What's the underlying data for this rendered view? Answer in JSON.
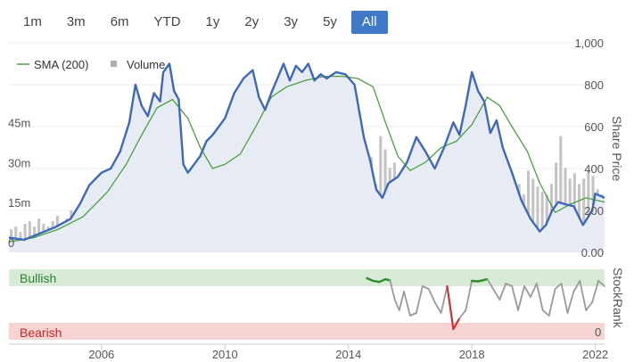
{
  "range_buttons": [
    {
      "label": "1m",
      "active": false
    },
    {
      "label": "3m",
      "active": false
    },
    {
      "label": "6m",
      "active": false
    },
    {
      "label": "YTD",
      "active": false
    },
    {
      "label": "1y",
      "active": false
    },
    {
      "label": "2y",
      "active": false
    },
    {
      "label": "3y",
      "active": false
    },
    {
      "label": "5y",
      "active": false
    },
    {
      "label": "All",
      "active": true
    }
  ],
  "colors": {
    "price": "#3f68b5",
    "sma": "#4aa03f",
    "volume": "#c4c4c4",
    "area": "#e7ebf4",
    "bullish_band": "#d7ebd7",
    "bearish_band": "#f6d4d4",
    "stockrank": "#9a9a9a",
    "stockrank_bull": "#2e8b2e",
    "stockrank_bear": "#d03030",
    "active_button": "#3f79c8"
  },
  "chart_data": {
    "type": "line",
    "legend": [
      {
        "label": "SMA (200)",
        "kind": "line"
      },
      {
        "label": "Volume",
        "kind": "bar"
      }
    ],
    "price_axis": {
      "title": "Share Price",
      "min": 0,
      "max": 1000,
      "ticks": [
        "1,000",
        "800",
        "600",
        "400",
        "200",
        "0.00"
      ]
    },
    "volume_axis": {
      "min": 0,
      "max": 75,
      "ticks": [
        "45m",
        "30m",
        "15m",
        "0"
      ]
    },
    "x_axis": {
      "min": 2003.0,
      "max": 2022.3,
      "ticks": [
        "2006",
        "2010",
        "2014",
        "2018",
        "2022"
      ],
      "tick_values": [
        2006,
        2010,
        2014,
        2018,
        2022
      ]
    },
    "price": {
      "x": [
        2003.0,
        2003.5,
        2004.0,
        2004.5,
        2005.0,
        2005.3,
        2005.6,
        2006.0,
        2006.3,
        2006.6,
        2006.9,
        2007.1,
        2007.3,
        2007.5,
        2007.7,
        2007.9,
        2008.0,
        2008.2,
        2008.35,
        2008.5,
        2008.65,
        2008.8,
        2009.0,
        2009.2,
        2009.4,
        2009.6,
        2009.8,
        2010.0,
        2010.3,
        2010.6,
        2010.9,
        2011.1,
        2011.3,
        2011.5,
        2011.7,
        2011.9,
        2012.1,
        2012.3,
        2012.5,
        2012.7,
        2012.9,
        2013.1,
        2013.3,
        2013.6,
        2013.9,
        2014.2,
        2014.5,
        2014.7,
        2014.9,
        2015.1,
        2015.3,
        2015.6,
        2015.9,
        2016.2,
        2016.5,
        2016.8,
        2017.1,
        2017.4,
        2017.6,
        2017.8,
        2018.0,
        2018.2,
        2018.4,
        2018.6,
        2018.8,
        2019.0,
        2019.3,
        2019.6,
        2019.9,
        2020.2,
        2020.4,
        2020.6,
        2020.8,
        2021.0,
        2021.3,
        2021.6,
        2021.9,
        2022.0,
        2022.3
      ],
      "y": [
        70,
        60,
        90,
        120,
        160,
        230,
        320,
        380,
        400,
        480,
        620,
        800,
        700,
        650,
        760,
        720,
        860,
        900,
        770,
        730,
        420,
        380,
        420,
        460,
        530,
        560,
        600,
        640,
        760,
        830,
        870,
        740,
        680,
        760,
        830,
        900,
        820,
        890,
        860,
        900,
        820,
        850,
        830,
        860,
        850,
        800,
        550,
        440,
        300,
        260,
        330,
        360,
        430,
        550,
        480,
        400,
        500,
        620,
        560,
        700,
        860,
        770,
        720,
        570,
        630,
        500,
        380,
        250,
        160,
        100,
        130,
        200,
        240,
        230,
        220,
        130,
        200,
        280,
        260
      ]
    },
    "sma": {
      "x": [
        2003.0,
        2003.8,
        2004.6,
        2005.4,
        2006.2,
        2006.8,
        2007.3,
        2007.8,
        2008.3,
        2008.8,
        2009.2,
        2009.6,
        2010.0,
        2010.5,
        2011.0,
        2011.5,
        2012.0,
        2012.6,
        2013.2,
        2013.8,
        2014.3,
        2014.8,
        2015.2,
        2015.6,
        2016.0,
        2016.5,
        2017.0,
        2017.5,
        2018.0,
        2018.5,
        2018.9,
        2019.3,
        2019.8,
        2020.2,
        2020.7,
        2021.2,
        2021.7,
        2022.3
      ],
      "y": [
        50,
        70,
        110,
        170,
        290,
        420,
        560,
        690,
        730,
        640,
        500,
        400,
        420,
        470,
        600,
        740,
        790,
        820,
        840,
        840,
        830,
        790,
        620,
        460,
        390,
        430,
        500,
        530,
        610,
        740,
        700,
        600,
        480,
        330,
        190,
        230,
        260,
        240
      ]
    },
    "volume": [
      5,
      6,
      4,
      7,
      8,
      6,
      9,
      7,
      6,
      8,
      10,
      7,
      9,
      12,
      10,
      14,
      12,
      16,
      18,
      15,
      20,
      17,
      22,
      25,
      19,
      28,
      21,
      33,
      25,
      27,
      40,
      24,
      30,
      26,
      38,
      22,
      20,
      18,
      25,
      23,
      27,
      19,
      21,
      24,
      18,
      20,
      22,
      25,
      19,
      17,
      21,
      23,
      16,
      18,
      20,
      15,
      17,
      19,
      14,
      16,
      18,
      15,
      13,
      17,
      19,
      14,
      16,
      15,
      18,
      13,
      17,
      12,
      15,
      14,
      16,
      13,
      20,
      18,
      32,
      22,
      40,
      35,
      28,
      30,
      24,
      26,
      22,
      20,
      24,
      21,
      23,
      19,
      18,
      22,
      20,
      17,
      21,
      19,
      16,
      18,
      20,
      17,
      22,
      24,
      19,
      18,
      16,
      17,
      15,
      20,
      22,
      18,
      27,
      24,
      21,
      19,
      18,
      22,
      30,
      40,
      28,
      24,
      26,
      22,
      24,
      27,
      25,
      20,
      18
    ],
    "stockrank": {
      "title": "StockRank",
      "bands": [
        "Bullish",
        "Bearish"
      ],
      "scale_label": "0",
      "x": [
        2014.6,
        2014.8,
        2015.0,
        2015.2,
        2015.35,
        2015.5,
        2015.65,
        2015.8,
        2016.0,
        2016.2,
        2016.4,
        2016.6,
        2016.8,
        2017.0,
        2017.2,
        2017.4,
        2017.6,
        2017.8,
        2018.0,
        2018.2,
        2018.5,
        2018.9,
        2019.1,
        2019.3,
        2019.5,
        2019.7,
        2019.9,
        2020.1,
        2020.3,
        2020.5,
        2020.7,
        2020.9,
        2021.1,
        2021.3,
        2021.5,
        2021.7,
        2021.9,
        2022.1,
        2022.3
      ],
      "y": [
        100,
        95,
        93,
        98,
        96,
        60,
        40,
        75,
        30,
        35,
        85,
        80,
        55,
        35,
        85,
        5,
        25,
        40,
        95,
        94,
        98,
        60,
        90,
        85,
        40,
        85,
        65,
        90,
        40,
        30,
        80,
        90,
        35,
        75,
        95,
        40,
        55,
        95,
        85
      ],
      "bull_threshold": 88,
      "bear_threshold": 10
    }
  }
}
